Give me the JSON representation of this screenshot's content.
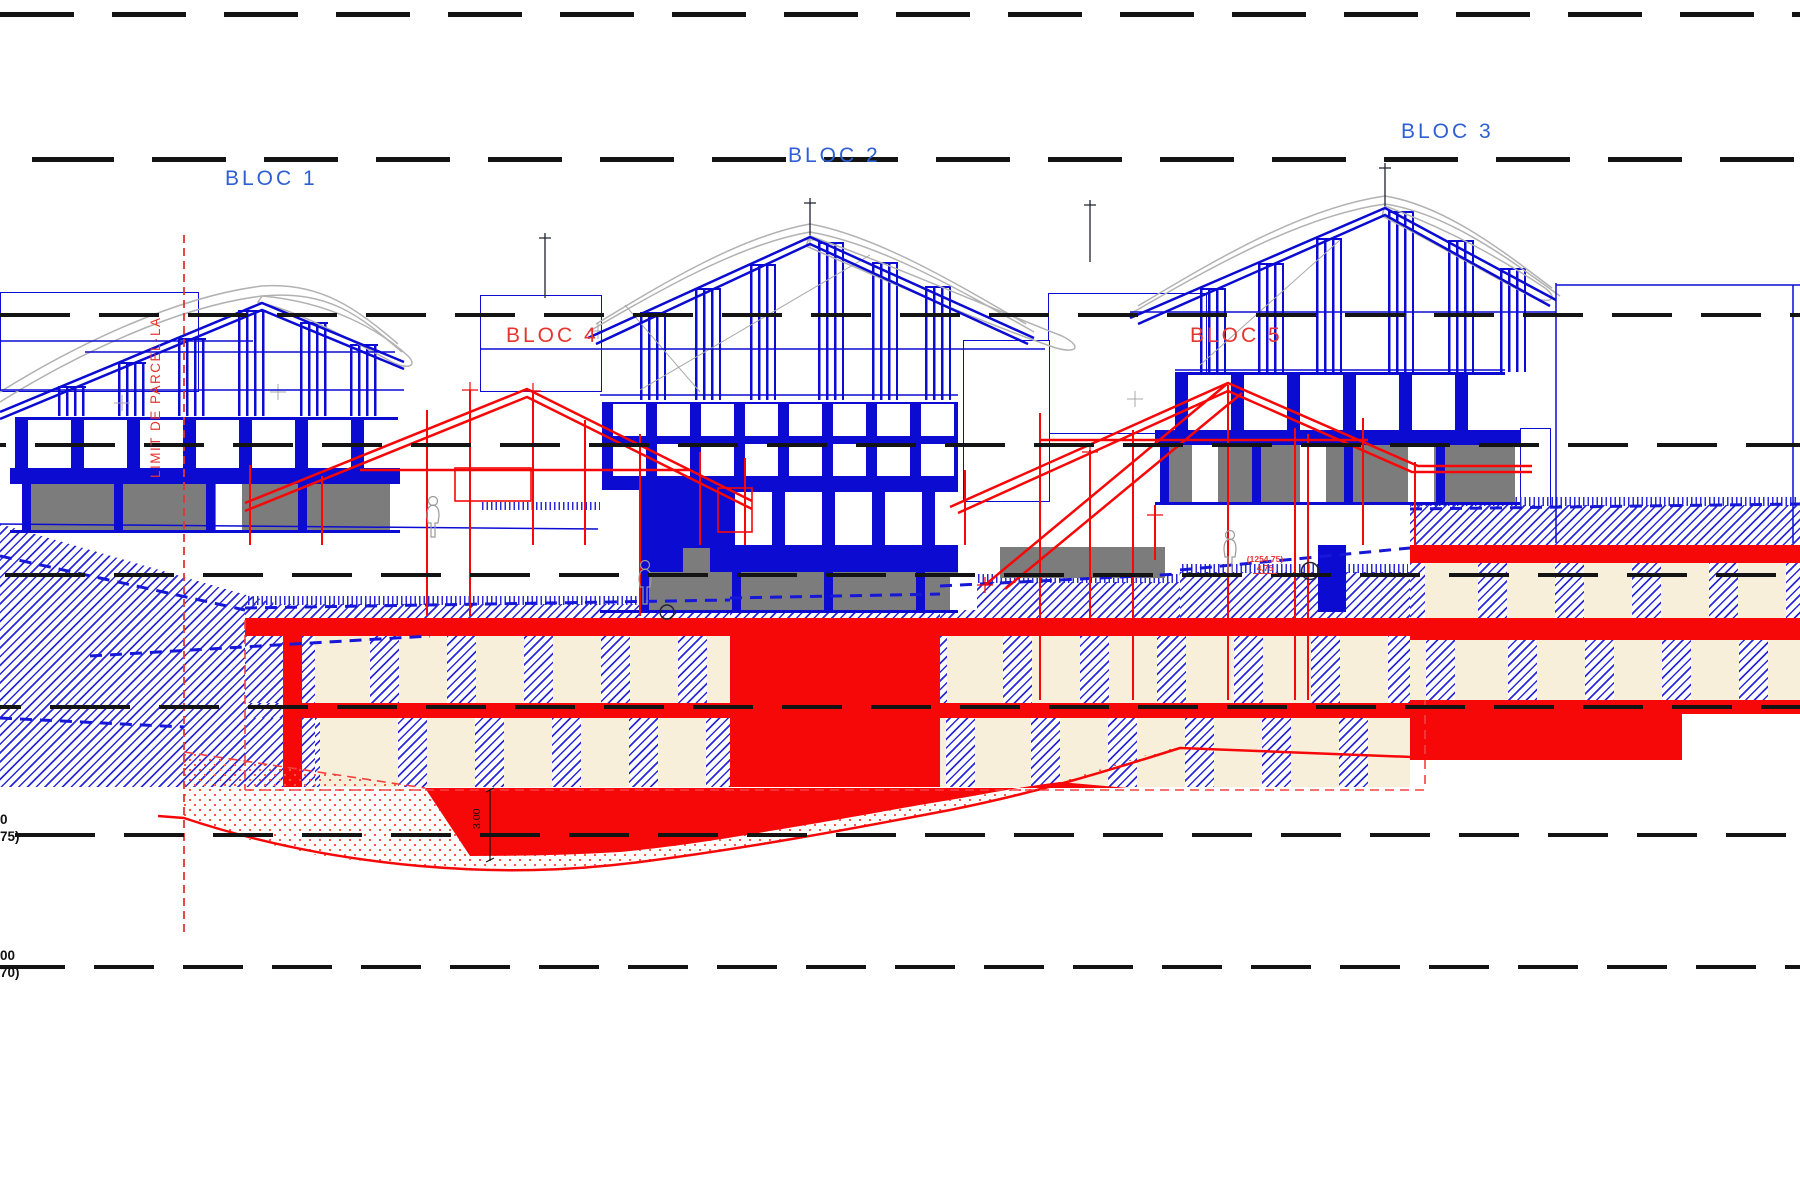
{
  "drawing": {
    "bloc_labels": {
      "bloc1": "BLOC 1",
      "bloc2": "BLOC 2",
      "bloc3": "BLOC 3",
      "bloc4": "BLOC 4",
      "bloc5": "BLOC 5"
    },
    "annotations": {
      "parcel_limit": "LIMIT DE PARCEL·LA",
      "left_elevation_upper": {
        "line1": "0",
        "line2": "75)"
      },
      "left_elevation_lower": {
        "line1": "00",
        "line2": "70)"
      },
      "spot_elevation": "(1254,75)",
      "spot_height": "4,75",
      "vertical_dimension": "3.00"
    },
    "colors": {
      "line_blue": "#0b0bd2",
      "hatch_blue": "#2a2ad8",
      "line_red": "#f70808",
      "label_blue": "#2e5fd3",
      "label_red": "#e53530",
      "opening_cream": "#f8efda",
      "garage_gray": "#7c7c7c",
      "roof_gray": "#b2b2b2",
      "dash_black": "#141414"
    }
  }
}
